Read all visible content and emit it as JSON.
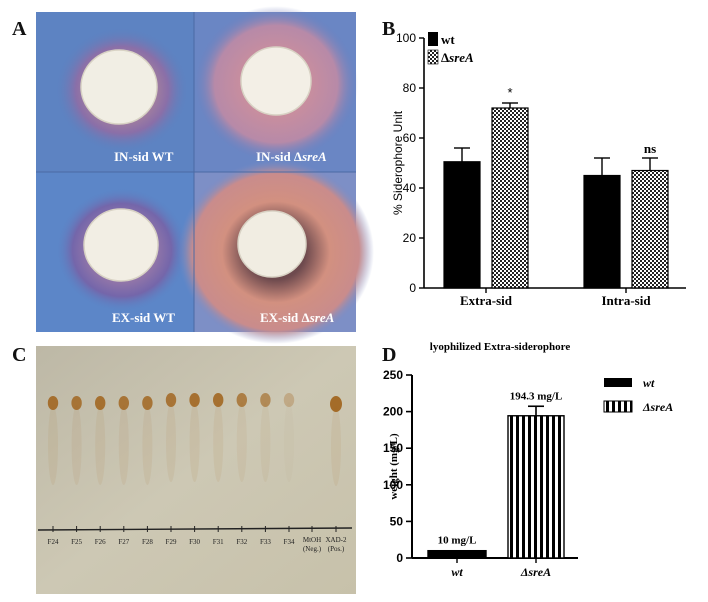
{
  "panel_letters": {
    "a": "A",
    "b": "B",
    "c": "C",
    "d": "D"
  },
  "photo_plates": {
    "in_wt": "IN-sid WT",
    "in_sre_prefix": "IN-sid Δ",
    "in_sre_italic": "sreA",
    "ex_wt": "EX-sid WT",
    "ex_sre_prefix": "EX-sid Δ",
    "ex_sre_italic": "sreA"
  },
  "tlc": {
    "fractions": [
      "F24",
      "F25",
      "F26",
      "F27",
      "F28",
      "F29",
      "F30",
      "F31",
      "F32",
      "F33",
      "F34"
    ],
    "controls": [
      {
        "line1": "MtOH",
        "line2": "(Neg.)"
      },
      {
        "line1": "XAD-2",
        "line2": "(Pos.)"
      }
    ],
    "spot_color": "#a0621a"
  },
  "chart_data": [
    {
      "type": "bar",
      "panel": "B",
      "title": "",
      "xlabel": "",
      "ylabel": "% Siderophore Unit",
      "ylim": [
        0,
        100
      ],
      "yticks": [
        "0",
        "20",
        "40",
        "60",
        "80",
        "100"
      ],
      "categories": [
        "Extra-sid",
        "Intra-sid"
      ],
      "series": [
        {
          "name": "wt",
          "values": [
            50.5,
            45.0
          ],
          "errors": [
            5.5,
            7.0
          ],
          "color": "#000000",
          "pattern": "solid"
        },
        {
          "name": "ΔsreA",
          "values": [
            72.0,
            47.0
          ],
          "errors": [
            2.0,
            5.0
          ],
          "color": "#888888",
          "pattern": "checker"
        }
      ],
      "annotations": [
        "*",
        "ns"
      ],
      "legend": "top-left"
    },
    {
      "type": "bar",
      "panel": "D",
      "title": "lyophilized Extra-siderophore",
      "xlabel": "",
      "ylabel": "weight (mg/L)",
      "ylim": [
        0,
        250
      ],
      "yticks": [
        "0",
        "50",
        "100",
        "150",
        "200",
        "250"
      ],
      "categories": [
        "wt",
        "ΔsreA"
      ],
      "values": [
        10,
        194.3
      ],
      "errors": [
        0,
        13
      ],
      "data_labels": [
        "10 mg/L",
        "194.3 mg/L"
      ],
      "series": [
        {
          "name": "wt",
          "pattern": "solid"
        },
        {
          "name": "ΔsreA",
          "pattern": "vstripes"
        }
      ],
      "legend": "right"
    }
  ]
}
